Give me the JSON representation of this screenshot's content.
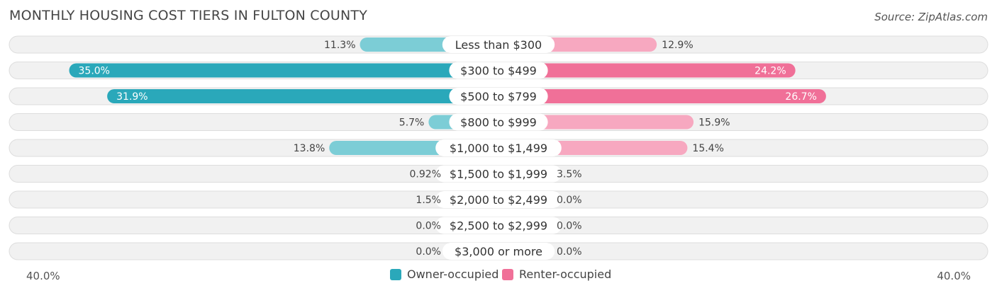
{
  "title": "MONTHLY HOUSING COST TIERS IN FULTON COUNTY",
  "source": "Source: ZipAtlas.com",
  "colors": {
    "owner_strong": "#2aa8ba",
    "owner_light": "#7ccdd6",
    "renter_strong": "#f07098",
    "renter_light": "#f7a8c0",
    "row_bg": "#f1f1f1",
    "row_border": "#dddddd"
  },
  "legend": {
    "owner": "Owner-occupied",
    "renter": "Renter-occupied"
  },
  "axis": {
    "left_label": "40.0%",
    "right_label": "40.0%"
  },
  "chart_data": {
    "type": "bar",
    "orientation": "horizontal-diverging",
    "title": "MONTHLY HOUSING COST TIERS IN FULTON COUNTY",
    "xlim": [
      -40,
      40
    ],
    "categories": [
      "Less than $300",
      "$300 to $499",
      "$500 to $799",
      "$800 to $999",
      "$1,000 to $1,499",
      "$1,500 to $1,999",
      "$2,000 to $2,499",
      "$2,500 to $2,999",
      "$3,000 or more"
    ],
    "series": [
      {
        "name": "Owner-occupied",
        "values": [
          11.3,
          35.0,
          31.9,
          5.7,
          13.8,
          0.92,
          1.5,
          0.0,
          0.0
        ],
        "labels": [
          "11.3%",
          "35.0%",
          "31.9%",
          "5.7%",
          "13.8%",
          "0.92%",
          "1.5%",
          "0.0%",
          "0.0%"
        ]
      },
      {
        "name": "Renter-occupied",
        "values": [
          12.9,
          24.2,
          26.7,
          15.9,
          15.4,
          3.5,
          0.0,
          0.0,
          0.0
        ],
        "labels": [
          "12.9%",
          "24.2%",
          "26.7%",
          "15.9%",
          "15.4%",
          "3.5%",
          "0.0%",
          "0.0%",
          "0.0%"
        ]
      }
    ],
    "legend_position": "bottom-center"
  }
}
